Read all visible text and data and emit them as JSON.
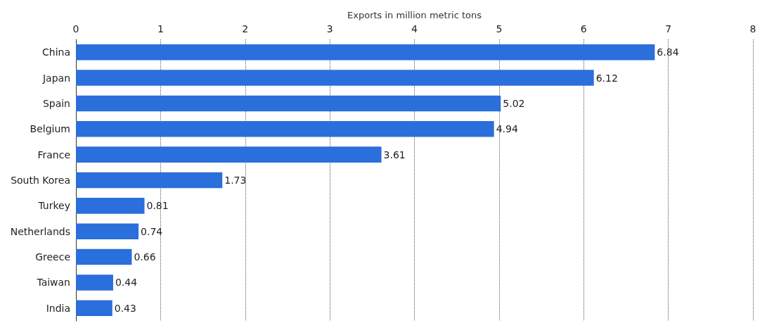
{
  "chart_data": {
    "type": "bar",
    "orientation": "horizontal",
    "xlabel": "Exports in million metric tons",
    "categories": [
      "China",
      "Japan",
      "Spain",
      "Belgium",
      "France",
      "South Korea",
      "Turkey",
      "Netherlands",
      "Greece",
      "Taiwan",
      "India"
    ],
    "values": [
      6.84,
      6.12,
      5.02,
      4.94,
      3.61,
      1.73,
      0.81,
      0.74,
      0.66,
      0.44,
      0.43
    ],
    "color": "#2a6fdb",
    "xlim": [
      0,
      8
    ],
    "xticks": [
      0,
      1,
      2,
      3,
      4,
      5,
      6,
      7,
      8
    ],
    "grid": "x",
    "data_labels": true
  }
}
